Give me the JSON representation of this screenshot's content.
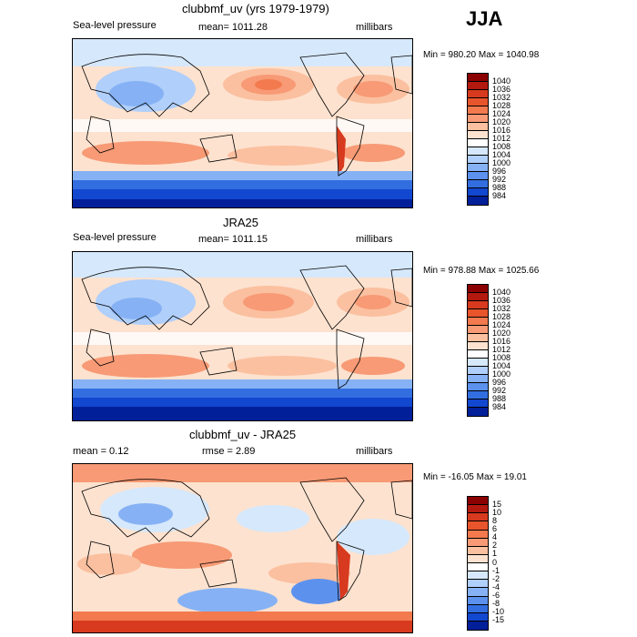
{
  "season": "JJA",
  "panels": [
    {
      "id": "model",
      "title": "clubbmf_uv (yrs 1979-1979)",
      "left_label": "Sea-level pressure",
      "center_label": "mean= 1011.28",
      "units": "millibars",
      "minmax": "Min = 980.20  Max = 1040.98",
      "colorbar": {
        "labels": [
          "1040",
          "1036",
          "1032",
          "1028",
          "1024",
          "1020",
          "1016",
          "1012",
          "1008",
          "1004",
          "1000",
          "996",
          "992",
          "988",
          "984"
        ],
        "colors": [
          "#8b0000",
          "#b4190f",
          "#d73a1e",
          "#e8552c",
          "#f27a4e",
          "#f79a75",
          "#fbc0a0",
          "#fde2cf",
          "#ffffff",
          "#d6e8fb",
          "#b0cffa",
          "#86b2f5",
          "#5c92ee",
          "#336ee0",
          "#1247d0",
          "#001f99"
        ]
      },
      "map_fill": [
        "#fbd3b9",
        "#d6e8fb",
        "#ffffff"
      ]
    },
    {
      "id": "obs",
      "title": "JRA25",
      "left_label": "Sea-level pressure",
      "center_label": "mean= 1011.15",
      "units": "millibars",
      "minmax": "Min = 978.88  Max = 1025.66",
      "colorbar": {
        "labels": [
          "1040",
          "1036",
          "1032",
          "1028",
          "1024",
          "1020",
          "1016",
          "1012",
          "1008",
          "1004",
          "1000",
          "996",
          "992",
          "988",
          "984"
        ],
        "colors": [
          "#8b0000",
          "#b4190f",
          "#d73a1e",
          "#e8552c",
          "#f27a4e",
          "#f79a75",
          "#fbc0a0",
          "#fde2cf",
          "#ffffff",
          "#d6e8fb",
          "#b0cffa",
          "#86b2f5",
          "#5c92ee",
          "#336ee0",
          "#1247d0",
          "#001f99"
        ]
      }
    },
    {
      "id": "diff",
      "title": "clubbmf_uv - JRA25",
      "left_label": "mean =    0.12",
      "center_label": "rmse =    2.89",
      "units": "millibars",
      "minmax": "Min = -16.05  Max =   19.01",
      "colorbar": {
        "labels": [
          "15",
          "10",
          "8",
          "6",
          "4",
          "2",
          "1",
          "0",
          "-1",
          "-2",
          "-4",
          "-6",
          "-8",
          "-10",
          "-15"
        ],
        "colors": [
          "#8b0000",
          "#b4190f",
          "#d73a1e",
          "#e8552c",
          "#f27a4e",
          "#f79a75",
          "#fbc0a0",
          "#fde2cf",
          "#ffffff",
          "#d6e8fb",
          "#b0cffa",
          "#86b2f5",
          "#5c92ee",
          "#336ee0",
          "#1247d0",
          "#001f99"
        ]
      }
    }
  ]
}
